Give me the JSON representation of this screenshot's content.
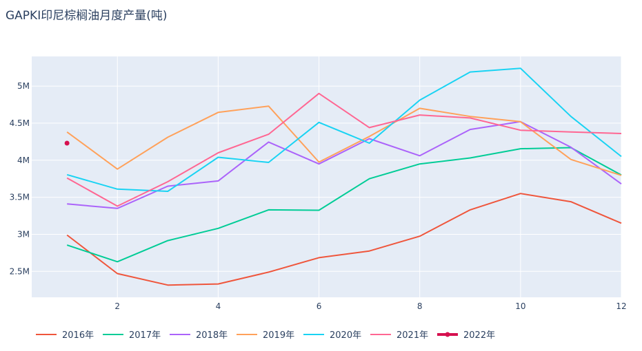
{
  "chart_data": {
    "type": "line",
    "title": "GAPKI印尼棕榈油月度产量(吨)",
    "xlabel": "",
    "ylabel": "",
    "x": [
      1,
      2,
      3,
      4,
      5,
      6,
      7,
      8,
      9,
      10,
      11,
      12
    ],
    "xticks": [
      2,
      4,
      6,
      8,
      10,
      12
    ],
    "xlim": [
      0.3,
      12
    ],
    "ylim": [
      2150000,
      5400000
    ],
    "yticks": [
      {
        "value": 2500000,
        "label": "2.5M"
      },
      {
        "value": 3000000,
        "label": "3M"
      },
      {
        "value": 3500000,
        "label": "3.5M"
      },
      {
        "value": 4000000,
        "label": "4M"
      },
      {
        "value": 4500000,
        "label": "4.5M"
      },
      {
        "value": 5000000,
        "label": "5M"
      }
    ],
    "grid": true,
    "legend_position": "bottom",
    "plot_bgcolor": "#e5ecf6",
    "series": [
      {
        "name": "2016年",
        "color": "#ef553b",
        "mode": "lines",
        "values": [
          2990000,
          2470000,
          2315000,
          2330000,
          2490000,
          2685000,
          2775000,
          2975000,
          3330000,
          3550000,
          3440000,
          3150000
        ]
      },
      {
        "name": "2017年",
        "color": "#00cc96",
        "mode": "lines",
        "values": [
          2855000,
          2630000,
          2915000,
          3080000,
          3330000,
          3325000,
          3750000,
          3950000,
          4030000,
          4155000,
          4170000,
          3800000
        ]
      },
      {
        "name": "2018年",
        "color": "#ab63fa",
        "mode": "lines",
        "values": [
          3410000,
          3350000,
          3650000,
          3720000,
          4245000,
          3950000,
          4290000,
          4060000,
          4415000,
          4520000,
          4175000,
          3680000
        ]
      },
      {
        "name": "2019年",
        "color": "#ffa15a",
        "mode": "lines",
        "values": [
          4380000,
          3880000,
          4310000,
          4645000,
          4730000,
          3975000,
          4320000,
          4700000,
          4590000,
          4520000,
          4010000,
          3795000
        ]
      },
      {
        "name": "2020年",
        "color": "#19d3f3",
        "mode": "lines",
        "values": [
          3805000,
          3610000,
          3580000,
          4040000,
          3970000,
          4510000,
          4230000,
          4810000,
          5190000,
          5240000,
          4590000,
          4050000
        ]
      },
      {
        "name": "2021年",
        "color": "#ff6692",
        "mode": "lines",
        "values": [
          3760000,
          3380000,
          3710000,
          4100000,
          4350000,
          4900000,
          4440000,
          4610000,
          4570000,
          4405000,
          4380000,
          4360000
        ]
      },
      {
        "name": "2022年",
        "color": "#d6104f",
        "mode": "lines+markers",
        "values": [
          4230000,
          null,
          null,
          null,
          null,
          null,
          null,
          null,
          null,
          null,
          null,
          null
        ]
      }
    ]
  }
}
